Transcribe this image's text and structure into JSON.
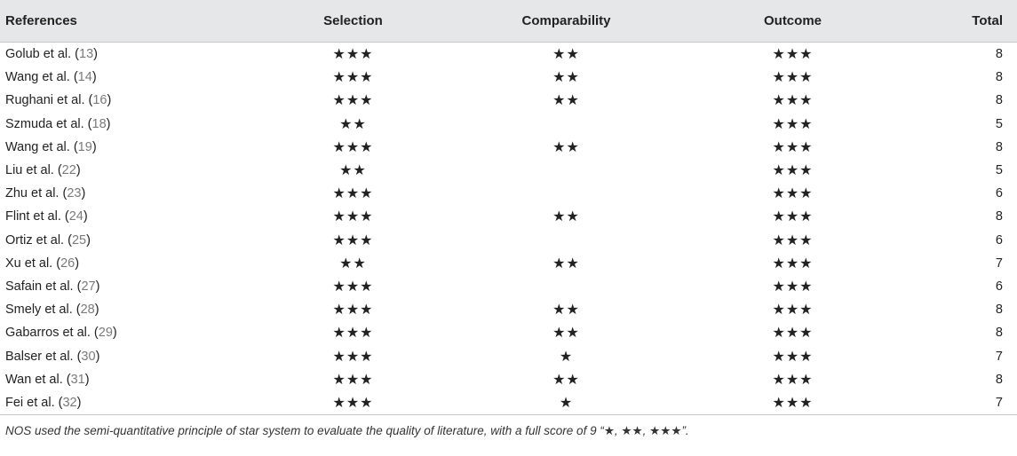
{
  "table": {
    "headers": {
      "references": "References",
      "selection": "Selection",
      "comparability": "Comparability",
      "outcome": "Outcome",
      "total": "Total"
    },
    "rows": [
      {
        "author": "Golub et al. (",
        "cite": "13",
        "close": ")",
        "selection": "★★★",
        "comparability": "★★",
        "outcome": "★★★",
        "total": "8"
      },
      {
        "author": "Wang et al. (",
        "cite": "14",
        "close": ")",
        "selection": "★★★",
        "comparability": "★★",
        "outcome": "★★★",
        "total": "8"
      },
      {
        "author": "Rughani et al. (",
        "cite": "16",
        "close": ")",
        "selection": "★★★",
        "comparability": "★★",
        "outcome": "★★★",
        "total": "8"
      },
      {
        "author": "Szmuda et al. (",
        "cite": "18",
        "close": ")",
        "selection": "★★",
        "comparability": "",
        "outcome": "★★★",
        "total": "5"
      },
      {
        "author": "Wang et al. (",
        "cite": "19",
        "close": ")",
        "selection": "★★★",
        "comparability": "★★",
        "outcome": "★★★",
        "total": "8"
      },
      {
        "author": "Liu et al. (",
        "cite": "22",
        "close": ")",
        "selection": "★★",
        "comparability": "",
        "outcome": "★★★",
        "total": "5"
      },
      {
        "author": "Zhu et al. (",
        "cite": "23",
        "close": ")",
        "selection": "★★★",
        "comparability": "",
        "outcome": "★★★",
        "total": "6"
      },
      {
        "author": "Flint et al. (",
        "cite": "24",
        "close": ")",
        "selection": "★★★",
        "comparability": "★★",
        "outcome": "★★★",
        "total": "8"
      },
      {
        "author": "Ortiz et al. (",
        "cite": "25",
        "close": ")",
        "selection": "★★★",
        "comparability": "",
        "outcome": "★★★",
        "total": "6"
      },
      {
        "author": "Xu et al. (",
        "cite": "26",
        "close": ")",
        "selection": "★★",
        "comparability": "★★",
        "outcome": "★★★",
        "total": "7"
      },
      {
        "author": "Safain et al. (",
        "cite": "27",
        "close": ")",
        "selection": "★★★",
        "comparability": "",
        "outcome": "★★★",
        "total": "6"
      },
      {
        "author": "Smely et al. (",
        "cite": "28",
        "close": ")",
        "selection": "★★★",
        "comparability": "★★",
        "outcome": "★★★",
        "total": "8"
      },
      {
        "author": "Gabarros et al. (",
        "cite": "29",
        "close": ")",
        "selection": "★★★",
        "comparability": "★★",
        "outcome": "★★★",
        "total": "8"
      },
      {
        "author": "Balser et al. (",
        "cite": "30",
        "close": ")",
        "selection": "★★★",
        "comparability": "★",
        "outcome": "★★★",
        "total": "7"
      },
      {
        "author": "Wan et al. (",
        "cite": "31",
        "close": ")",
        "selection": "★★★",
        "comparability": "★★",
        "outcome": "★★★",
        "total": "8"
      },
      {
        "author": "Fei et al. (",
        "cite": "32",
        "close": ")",
        "selection": "★★★",
        "comparability": "★",
        "outcome": "★★★",
        "total": "7"
      }
    ]
  },
  "footnote": "NOS used the semi-quantitative principle of star system to evaluate the quality of literature, with a full score of 9 “★, ★★, ★★★”."
}
